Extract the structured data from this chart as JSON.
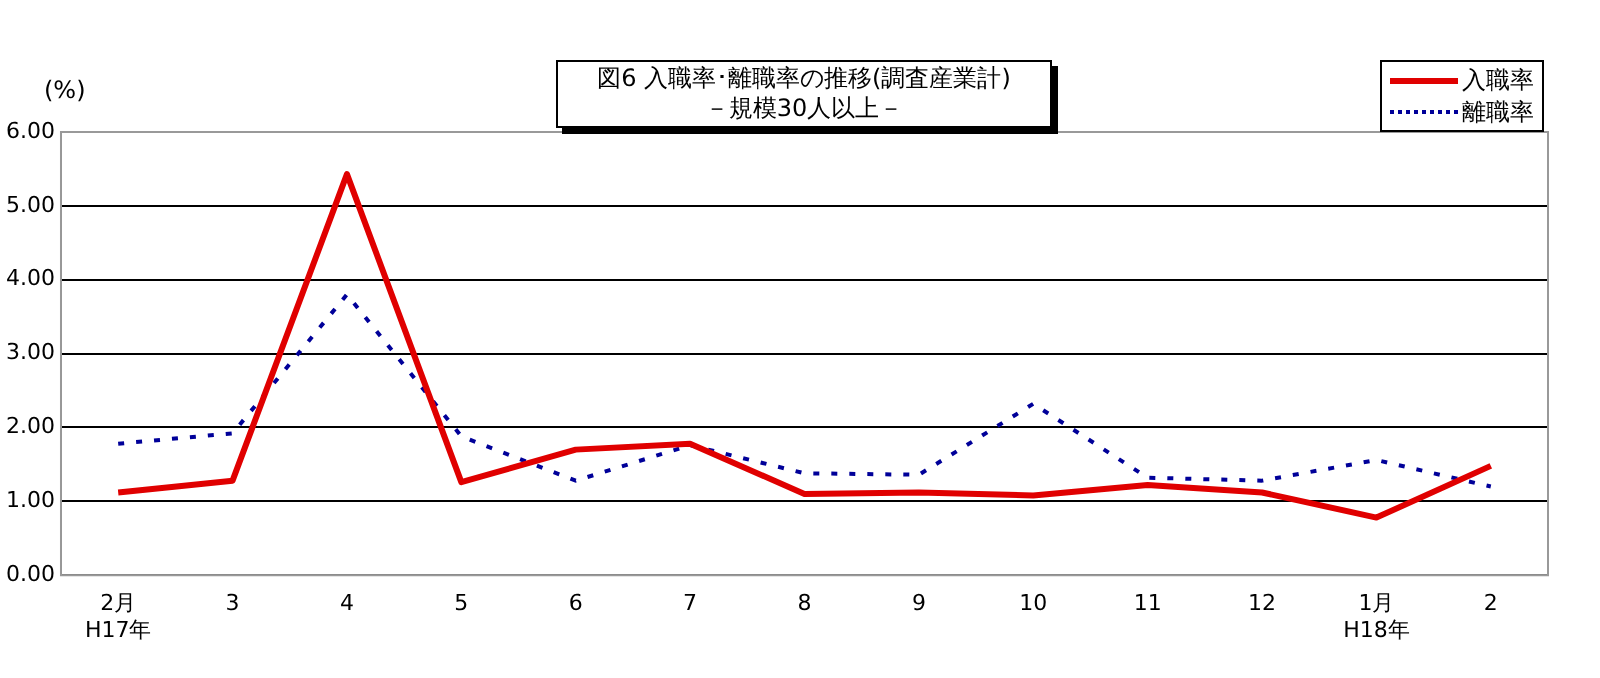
{
  "chart_data": {
    "type": "line",
    "title": "図6 入職率･離職率の推移(調査産業計)",
    "subtitle": "－規模30人以上－",
    "ylabel": "(%)",
    "categories": [
      "2月\nH17年",
      "3",
      "4",
      "5",
      "6",
      "7",
      "8",
      "9",
      "10",
      "11",
      "12",
      "1月\nH18年",
      "2"
    ],
    "series": [
      {
        "name": "入職率",
        "color": "#e00000",
        "line_style": "solid",
        "values": [
          1.12,
          1.28,
          5.43,
          1.26,
          1.7,
          1.78,
          1.1,
          1.12,
          1.08,
          1.22,
          1.12,
          0.78,
          1.48
        ]
      },
      {
        "name": "離職率",
        "color": "#000099",
        "line_style": "dotted",
        "values": [
          1.78,
          1.92,
          3.8,
          1.88,
          1.28,
          1.76,
          1.38,
          1.36,
          2.32,
          1.32,
          1.28,
          1.56,
          1.2
        ]
      }
    ],
    "ylim": [
      0,
      6
    ],
    "yticks": [
      {
        "value": 0,
        "label": "0.00"
      },
      {
        "value": 1,
        "label": "1.00"
      },
      {
        "value": 2,
        "label": "2.00"
      },
      {
        "value": 3,
        "label": "3.00"
      },
      {
        "value": 4,
        "label": "4.00"
      },
      {
        "value": 5,
        "label": "5.00"
      },
      {
        "value": 6,
        "label": "6.00"
      }
    ],
    "grid": "y",
    "legend": "top right",
    "marker": "none"
  }
}
